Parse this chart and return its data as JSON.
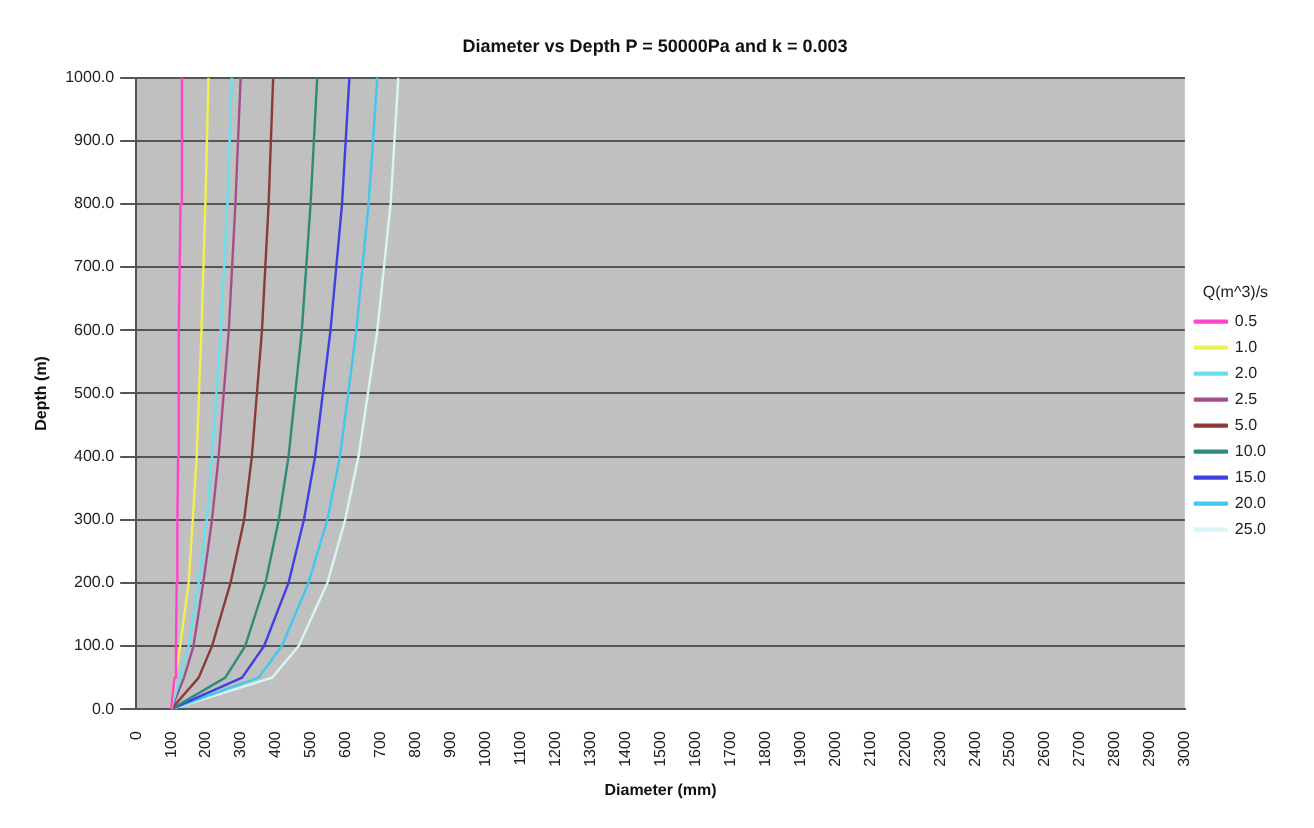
{
  "chart_data": {
    "type": "line",
    "title": "Diameter vs Depth P = 50000Pa and k = 0.003",
    "xlabel": "Diameter (mm)",
    "ylabel": "Depth (m)",
    "legend_title": "Q(m^3)/s",
    "legend": "right",
    "grid": "y",
    "marker": "none",
    "line_style": "solid",
    "xlim": [
      0,
      3000
    ],
    "xticks": [
      0,
      100,
      200,
      300,
      400,
      500,
      600,
      700,
      800,
      900,
      1000,
      1100,
      1200,
      1300,
      1400,
      1500,
      1600,
      1700,
      1800,
      1900,
      2000,
      2100,
      2200,
      2300,
      2400,
      2500,
      2600,
      2700,
      2800,
      2900,
      3000
    ],
    "ylim": [
      0,
      1000
    ],
    "yticks": [
      {
        "value": 0,
        "label": "0.0"
      },
      {
        "value": 100,
        "label": "100.0"
      },
      {
        "value": 200,
        "label": "200.0"
      },
      {
        "value": 300,
        "label": "300.0"
      },
      {
        "value": 400,
        "label": "400.0"
      },
      {
        "value": 500,
        "label": "500.0"
      },
      {
        "value": 600,
        "label": "600.0"
      },
      {
        "value": 700,
        "label": "700.0"
      },
      {
        "value": 800,
        "label": "800.0"
      },
      {
        "value": 900,
        "label": "900.0"
      },
      {
        "value": 1000,
        "label": "1000.0"
      }
    ],
    "series": [
      {
        "name": "0.5",
        "color": "#ff44cc",
        "x": [
          100,
          110,
          114,
          116,
          118,
          120,
          122,
          127,
          131
        ],
        "values": [
          0,
          50,
          100,
          200,
          300,
          400,
          600,
          800,
          1000
        ]
      },
      {
        "name": "1.0",
        "color": "#f0f050",
        "x": [
          100,
          112,
          126,
          150,
          162,
          173,
          187,
          198,
          207
        ],
        "values": [
          0,
          50,
          100,
          200,
          300,
          400,
          600,
          800,
          1000
        ]
      },
      {
        "name": "2.0",
        "color": "#66e0f0",
        "x": [
          100,
          126,
          150,
          179,
          202,
          217,
          242,
          261,
          274
        ],
        "values": [
          0,
          50,
          100,
          200,
          300,
          400,
          600,
          800,
          1000
        ]
      },
      {
        "name": "2.5",
        "color": "#a0508a",
        "x": [
          100,
          137,
          164,
          192,
          217,
          236,
          265,
          284,
          299
        ],
        "values": [
          0,
          50,
          100,
          200,
          300,
          400,
          600,
          800,
          1000
        ]
      },
      {
        "name": "5.0",
        "color": "#8b3a3a",
        "x": [
          100,
          179,
          217,
          270,
          309,
          331,
          360,
          379,
          392
        ],
        "values": [
          0,
          50,
          100,
          200,
          300,
          400,
          600,
          800,
          1000
        ]
      },
      {
        "name": "10.0",
        "color": "#2e8b7a",
        "x": [
          100,
          255,
          312,
          370,
          408,
          436,
          474,
          499,
          518
        ],
        "values": [
          0,
          50,
          100,
          200,
          300,
          400,
          600,
          800,
          1000
        ]
      },
      {
        "name": "15.0",
        "color": "#4040e0",
        "x": [
          100,
          303,
          366,
          436,
          480,
          512,
          556,
          589,
          610
        ],
        "values": [
          0,
          50,
          100,
          200,
          300,
          400,
          600,
          800,
          1000
        ]
      },
      {
        "name": "20.0",
        "color": "#40c8f0",
        "x": [
          100,
          350,
          417,
          493,
          547,
          583,
          630,
          665,
          690
        ],
        "values": [
          0,
          50,
          100,
          200,
          300,
          400,
          600,
          800,
          1000
        ]
      },
      {
        "name": "25.0",
        "color": "#d8f4f4",
        "x": [
          100,
          389,
          465,
          547,
          598,
          636,
          690,
          728,
          750
        ],
        "values": [
          0,
          50,
          100,
          200,
          300,
          400,
          600,
          800,
          1000
        ]
      }
    ]
  }
}
